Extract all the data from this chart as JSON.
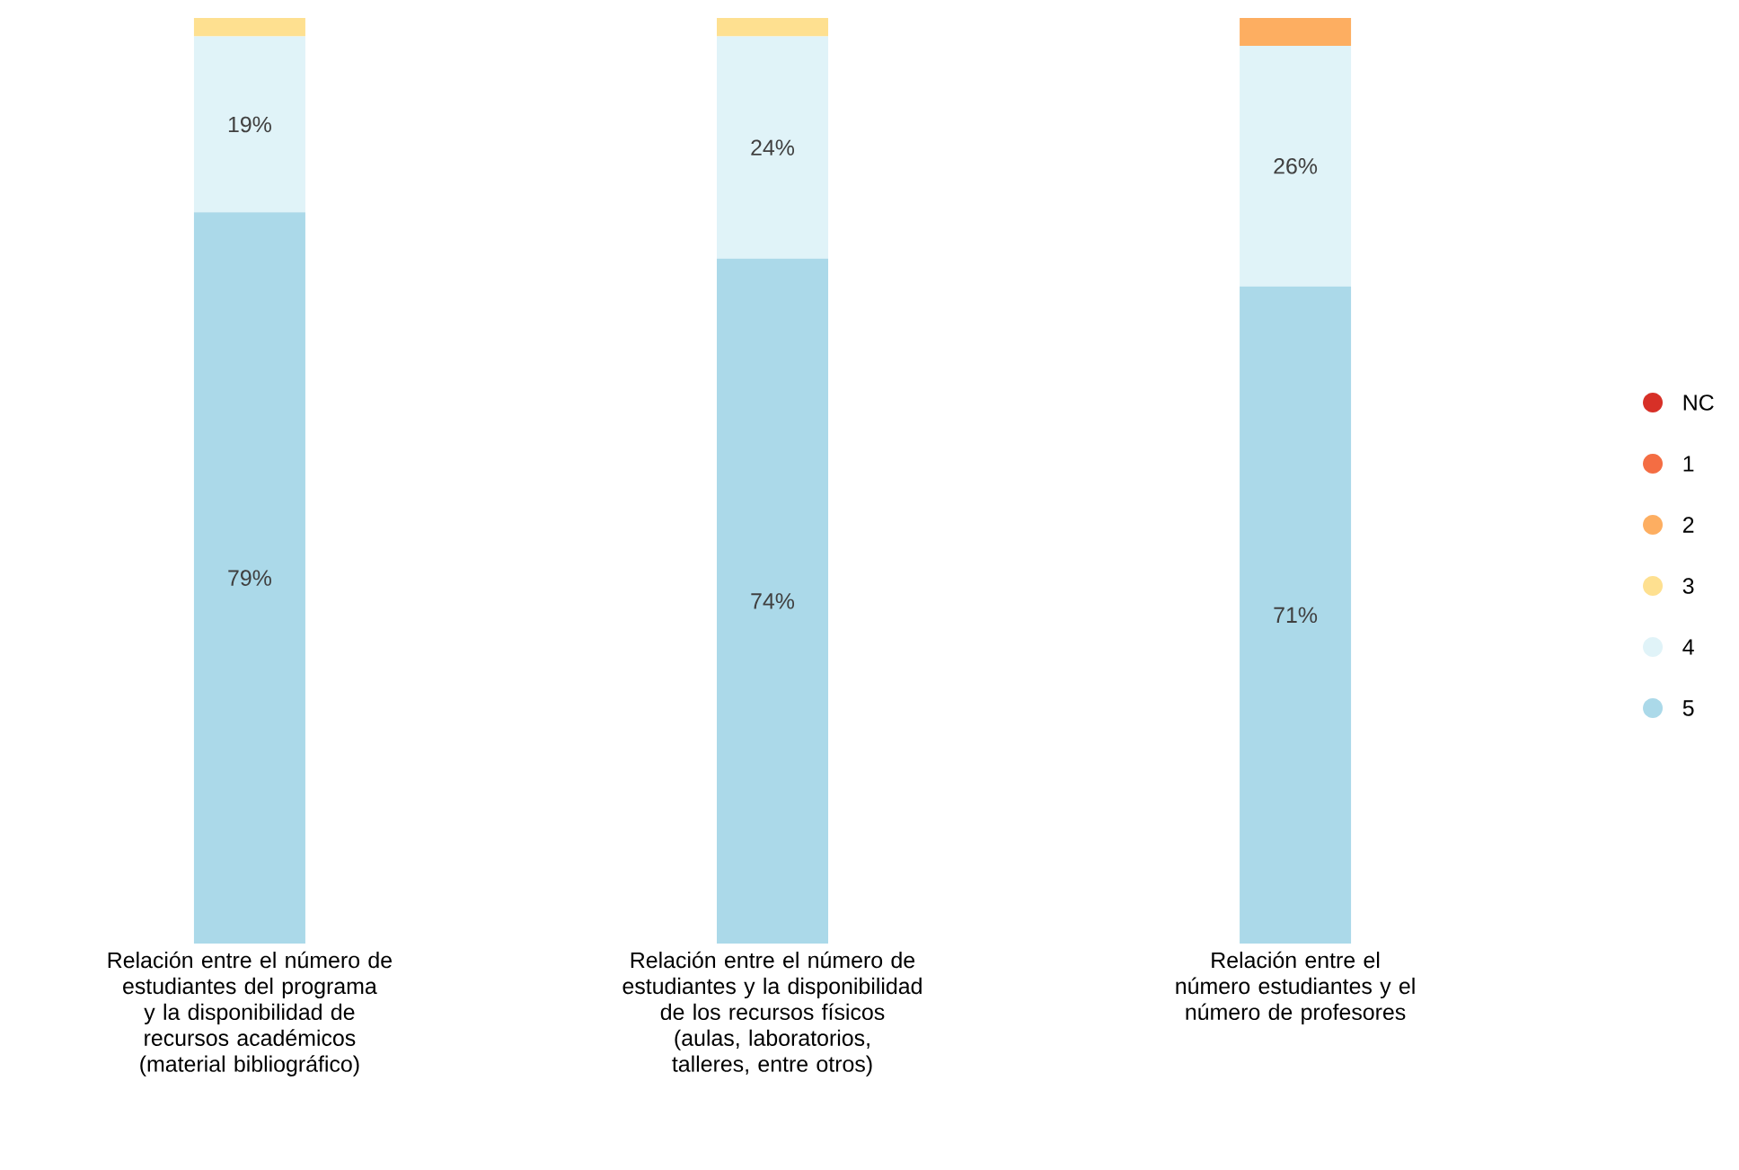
{
  "chart_data": {
    "type": "bar",
    "stacked": true,
    "legend": "right",
    "marker": "circle",
    "tick_labels": "x",
    "categories": [
      "Relación entre el número de estudiantes del programa y la disponibilidad de recursos académicos (material bibliográfico)",
      "Relación entre el número de estudiantes y la disponibilidad de los recursos físicos (aulas, laboratorios, talleres, entre otros)",
      "Relación entre el número estudiantes y el número de profesores"
    ],
    "series": [
      {
        "name": "5",
        "color": "#abd9e9",
        "values": [
          79,
          74,
          71
        ],
        "value_labels": [
          "79%",
          "74%",
          "71%"
        ]
      },
      {
        "name": "4",
        "color": "#e0f3f8",
        "values": [
          19,
          24,
          26
        ],
        "value_labels": [
          "19%",
          "24%",
          "26%"
        ]
      },
      {
        "name": "3",
        "color": "#fee090",
        "values": [
          2,
          2,
          0
        ]
      },
      {
        "name": "2",
        "color": "#fdae61",
        "values": [
          0,
          0,
          3
        ]
      },
      {
        "name": "1",
        "color": "#f46d43",
        "values": [
          0,
          0,
          0
        ]
      },
      {
        "name": "NC",
        "color": "#d73027",
        "values": [
          0,
          0,
          0
        ]
      }
    ]
  }
}
